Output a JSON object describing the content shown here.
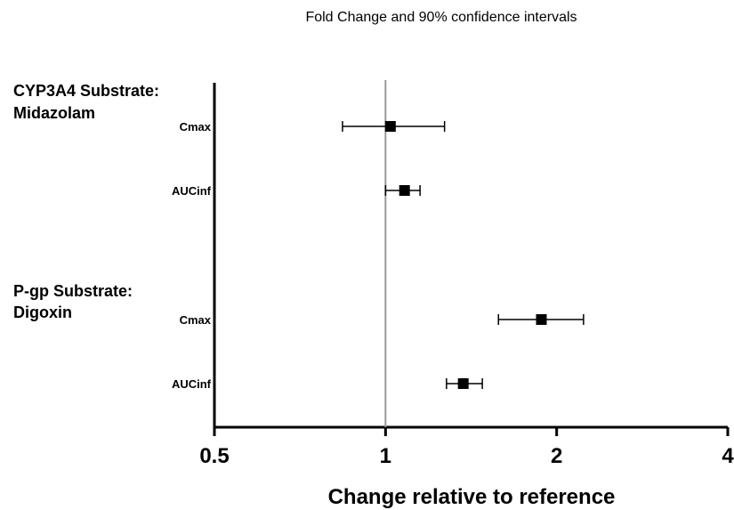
{
  "chart_data": {
    "type": "scatter",
    "subtype": "forest-plot",
    "title": "Fold Change and 90% confidence intervals",
    "xlabel": "Change relative to reference",
    "ylabel": "",
    "x_scale": "log2",
    "xlim": [
      0.5,
      4
    ],
    "x_ticks": [
      {
        "value": 0.5,
        "label": "0.5"
      },
      {
        "value": 1,
        "label": "1"
      },
      {
        "value": 2,
        "label": "2"
      },
      {
        "value": 4,
        "label": "4"
      }
    ],
    "reference_line": 1,
    "reference_line_color": "#999999",
    "marker_color": "#000000",
    "groups": [
      {
        "label_lines": [
          "CYP3A4 Substrate:",
          "Midazolam"
        ],
        "rows": [
          {
            "label": "Cmax",
            "value": 1.02,
            "lower": 0.84,
            "upper": 1.27
          },
          {
            "label": "AUCinf",
            "value": 1.08,
            "lower": 1.0,
            "upper": 1.15
          }
        ]
      },
      {
        "label_lines": [
          "P-gp Substrate:",
          "Digoxin"
        ],
        "rows": [
          {
            "label": "Cmax",
            "value": 1.88,
            "lower": 1.58,
            "upper": 2.23
          },
          {
            "label": "AUCinf",
            "value": 1.37,
            "lower": 1.28,
            "upper": 1.48
          }
        ]
      }
    ]
  }
}
